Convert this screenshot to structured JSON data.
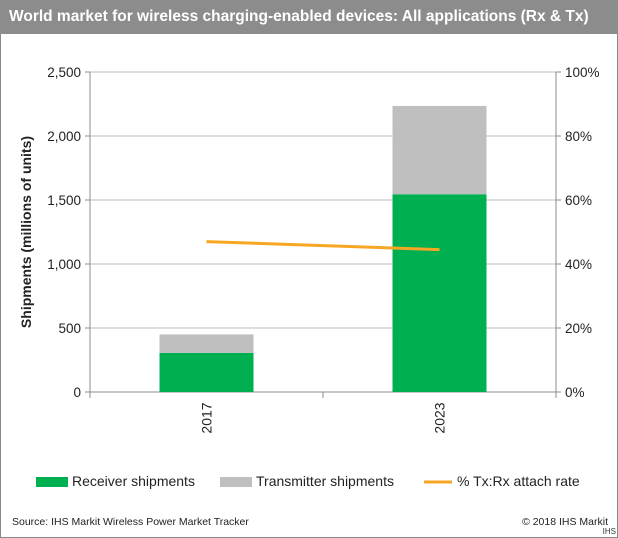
{
  "title": "World market for wireless charging-enabled devices: All applications (Rx & Tx)",
  "source": "Source: IHS Markit Wireless Power Market Tracker",
  "copyright": "© 2018 IHS Markit",
  "logo_text": "IHS",
  "colors": {
    "receiver": "#00b050",
    "transmitter": "#bfbfbf",
    "attach_rate": "#f5a623",
    "title_bar": "#8c8c8c"
  },
  "chart_data": {
    "type": "bar",
    "stacked": true,
    "categories": [
      "2017",
      "2023"
    ],
    "series": [
      {
        "name": "Receiver shipments",
        "values": [
          305,
          1545
        ],
        "axis": "left"
      },
      {
        "name": "Transmitter shipments",
        "values": [
          145,
          690
        ],
        "axis": "left"
      }
    ],
    "line_series": [
      {
        "name": "% Tx:Rx attach rate",
        "values": [
          47,
          44.5
        ],
        "axis": "right"
      }
    ],
    "ylabel": "Shipments (millions of units)",
    "ylim": [
      0,
      2500
    ],
    "yticks": [
      "0",
      "500",
      "1,000",
      "1,500",
      "2,000",
      "2,500"
    ],
    "y2lim": [
      0,
      100
    ],
    "y2ticks": [
      "0%",
      "20%",
      "40%",
      "60%",
      "80%",
      "100%"
    ],
    "grid": true,
    "legend": "bottom"
  }
}
